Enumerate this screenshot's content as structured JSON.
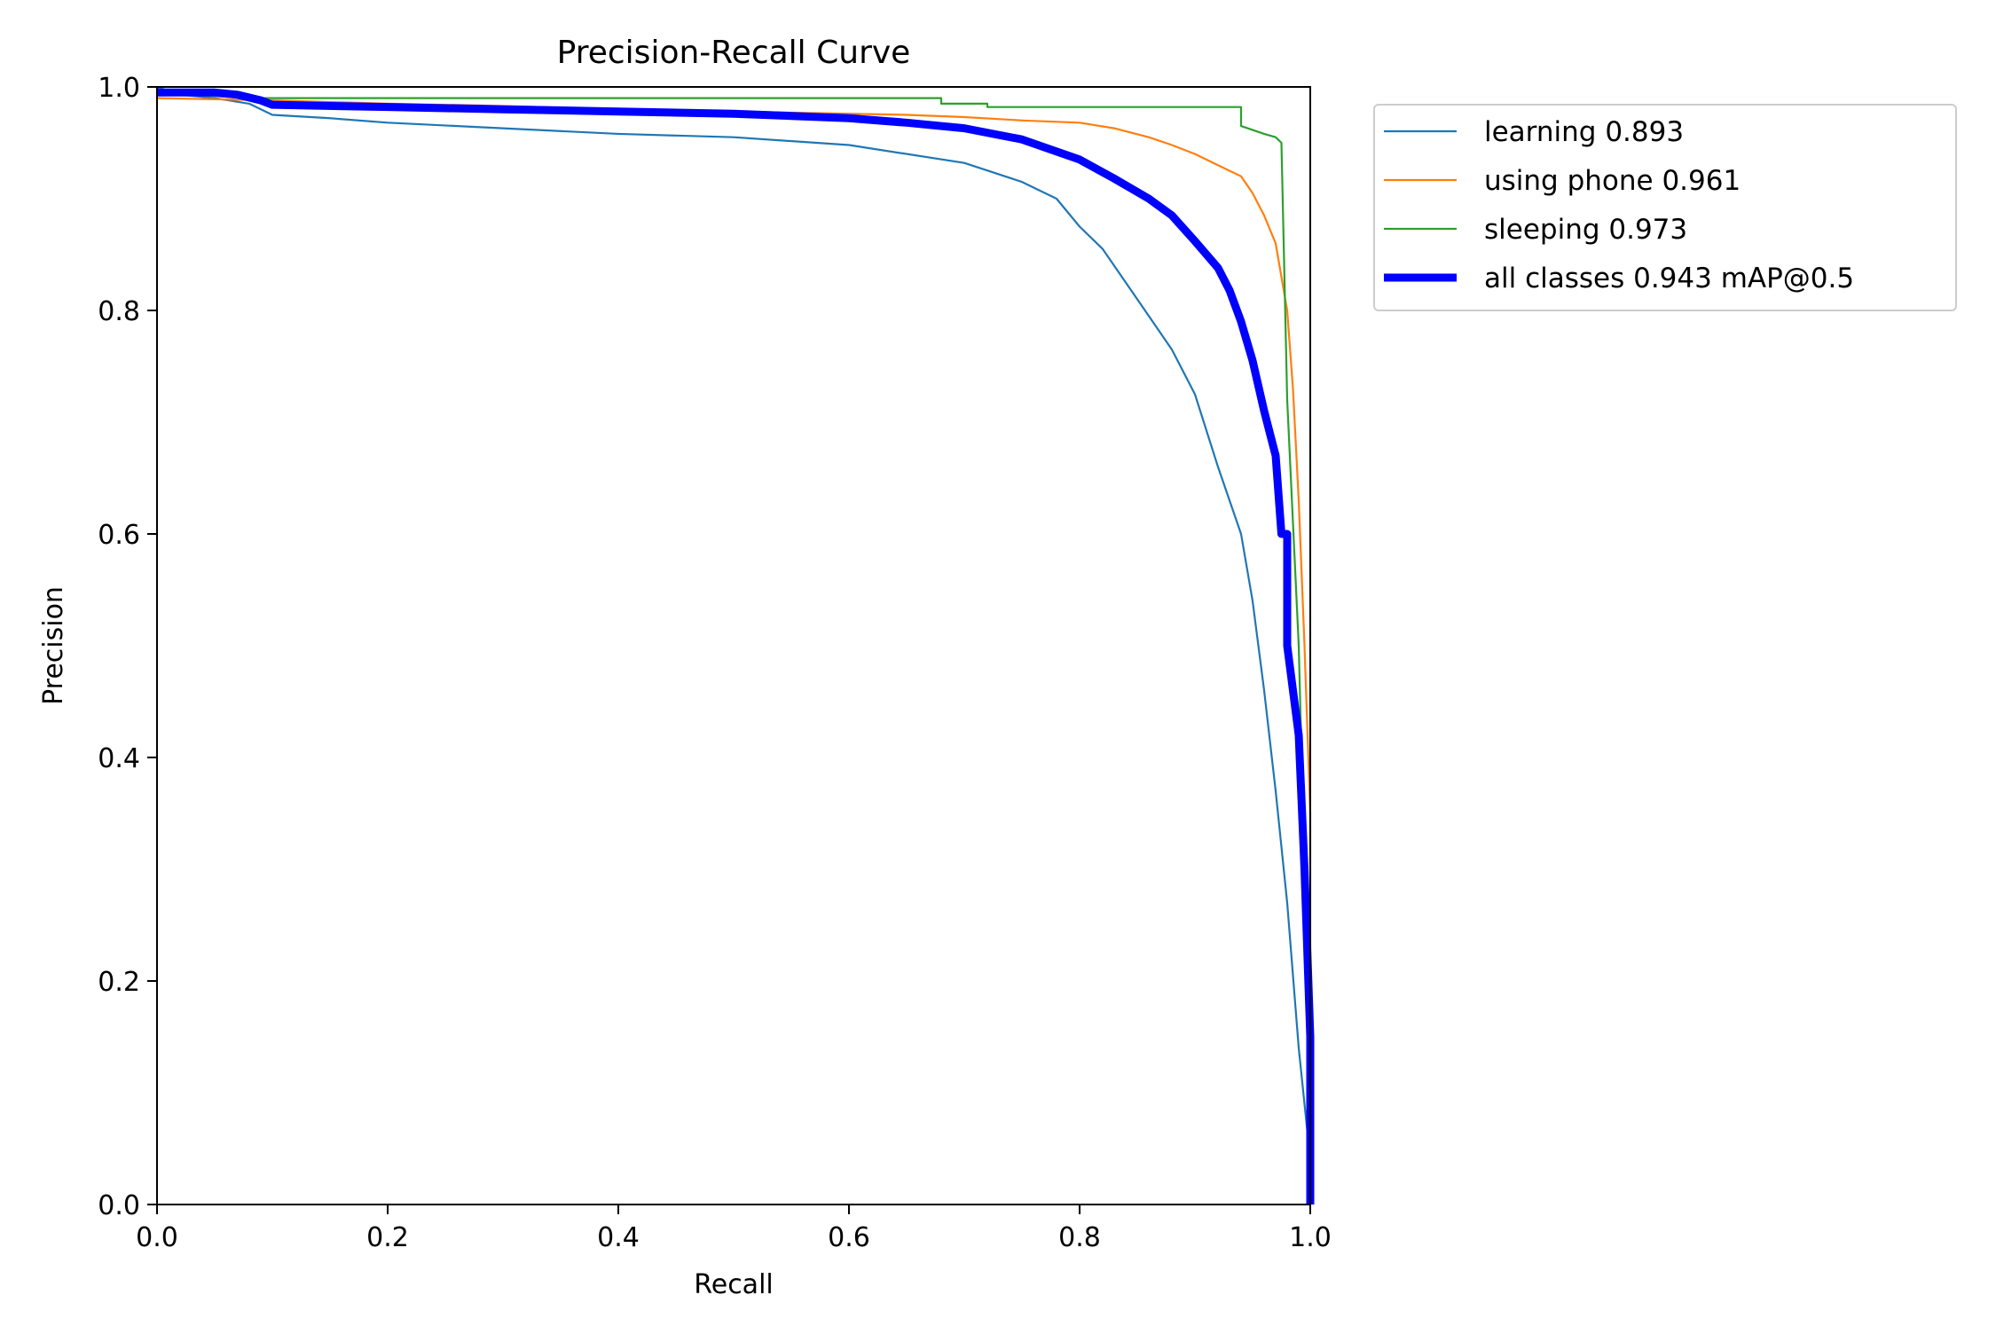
{
  "chart_data": {
    "type": "line",
    "title": "Precision-Recall Curve",
    "xlabel": "Recall",
    "ylabel": "Precision",
    "xlim": [
      0.0,
      1.0
    ],
    "ylim": [
      0.0,
      1.0
    ],
    "x_ticks": [
      "0.0",
      "0.2",
      "0.4",
      "0.6",
      "0.8",
      "1.0"
    ],
    "y_ticks": [
      "0.0",
      "0.2",
      "0.4",
      "0.6",
      "0.8",
      "1.0"
    ],
    "grid": false,
    "legend_position": "outside-top-right",
    "series": [
      {
        "name": "learning 0.893",
        "color": "#1f77b4",
        "emphasis": "normal",
        "x": [
          0.0,
          0.02,
          0.05,
          0.08,
          0.1,
          0.15,
          0.2,
          0.3,
          0.4,
          0.5,
          0.6,
          0.7,
          0.75,
          0.78,
          0.8,
          0.82,
          0.84,
          0.86,
          0.88,
          0.9,
          0.92,
          0.94,
          0.95,
          0.96,
          0.97,
          0.98,
          0.99,
          1.0,
          1.0
        ],
        "y": [
          1.0,
          0.993,
          0.99,
          0.985,
          0.975,
          0.972,
          0.968,
          0.963,
          0.958,
          0.955,
          0.948,
          0.932,
          0.915,
          0.9,
          0.875,
          0.855,
          0.825,
          0.795,
          0.765,
          0.725,
          0.66,
          0.6,
          0.54,
          0.46,
          0.37,
          0.27,
          0.14,
          0.04,
          0.0
        ]
      },
      {
        "name": "using phone 0.961",
        "color": "#ff7f0e",
        "emphasis": "normal",
        "x": [
          0.0,
          0.1,
          0.2,
          0.3,
          0.4,
          0.5,
          0.6,
          0.65,
          0.7,
          0.75,
          0.8,
          0.83,
          0.86,
          0.88,
          0.9,
          0.92,
          0.94,
          0.95,
          0.96,
          0.97,
          0.98,
          0.985,
          0.99,
          0.995,
          1.0,
          1.0
        ],
        "y": [
          0.99,
          0.988,
          0.985,
          0.983,
          0.98,
          0.978,
          0.976,
          0.975,
          0.973,
          0.97,
          0.968,
          0.963,
          0.955,
          0.948,
          0.94,
          0.93,
          0.92,
          0.905,
          0.885,
          0.86,
          0.8,
          0.73,
          0.63,
          0.5,
          0.35,
          0.0
        ]
      },
      {
        "name": "sleeping 0.973",
        "color": "#2ca02c",
        "emphasis": "normal",
        "x": [
          0.0,
          0.08,
          0.2,
          0.4,
          0.6,
          0.68,
          0.68,
          0.72,
          0.72,
          0.94,
          0.94,
          0.96,
          0.97,
          0.975,
          0.98,
          0.99,
          0.995,
          1.0,
          1.0
        ],
        "y": [
          0.995,
          0.99,
          0.99,
          0.99,
          0.99,
          0.99,
          0.985,
          0.985,
          0.982,
          0.982,
          0.965,
          0.958,
          0.955,
          0.95,
          0.72,
          0.5,
          0.3,
          0.1,
          0.0
        ]
      },
      {
        "name": "all classes 0.943 mAP@0.5",
        "color": "#0000ff",
        "emphasis": "bold",
        "x": [
          0.0,
          0.05,
          0.07,
          0.09,
          0.1,
          0.2,
          0.3,
          0.4,
          0.5,
          0.6,
          0.65,
          0.7,
          0.75,
          0.8,
          0.83,
          0.86,
          0.88,
          0.9,
          0.92,
          0.93,
          0.94,
          0.95,
          0.96,
          0.97,
          0.975,
          0.98,
          0.98,
          0.99,
          0.995,
          1.0,
          1.0
        ],
        "y": [
          0.995,
          0.995,
          0.993,
          0.988,
          0.984,
          0.982,
          0.98,
          0.978,
          0.976,
          0.972,
          0.968,
          0.963,
          0.953,
          0.935,
          0.918,
          0.9,
          0.885,
          0.862,
          0.838,
          0.818,
          0.79,
          0.755,
          0.71,
          0.67,
          0.6,
          0.6,
          0.5,
          0.42,
          0.3,
          0.15,
          0.0
        ]
      }
    ]
  }
}
